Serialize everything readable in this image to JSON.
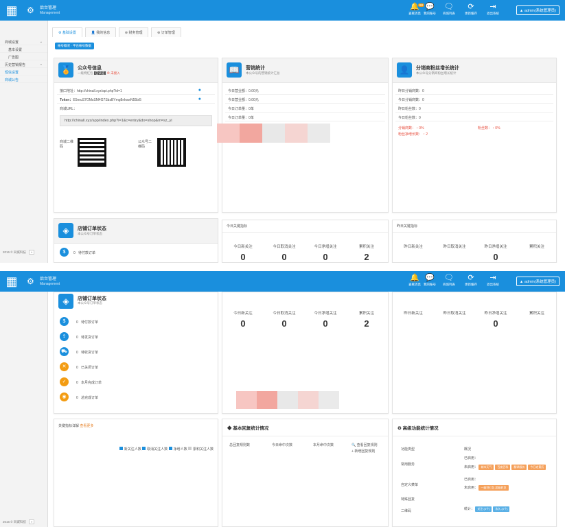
{
  "header": {
    "brand_cn": "后台管理",
    "brand_en": "Management",
    "icons": [
      {
        "name": "message-icon",
        "label": "查看消息",
        "badge": "88"
      },
      {
        "name": "account-icon",
        "label": "我的账号"
      },
      {
        "name": "list-icon",
        "label": "商城列表"
      },
      {
        "name": "refresh-icon",
        "label": "更新缓存"
      },
      {
        "name": "logout-icon",
        "label": "退出系统"
      }
    ],
    "admin": "admin(系统管理员)"
  },
  "sidebar": {
    "items": [
      {
        "label": "商城设置",
        "type": "grp"
      },
      {
        "label": "基本设置",
        "type": "sub"
      },
      {
        "label": "广告图",
        "type": "sub"
      },
      {
        "label": "历史营销报告",
        "type": "grp"
      },
      {
        "label": "短信设置",
        "type": "item"
      },
      {
        "label": "商城公告",
        "type": "item"
      }
    ],
    "footer": "2016 © 同城科技",
    "footer_btn": "»"
  },
  "tabs": [
    "基础设置",
    "我的信息",
    "财务管理",
    "订单管理"
  ],
  "breadcrumb": "帐号概况 · 平台帐号数据",
  "public_account": {
    "title": "公众号信息",
    "sub": "一级特红包",
    "sub_tag": "已认证",
    "sub_warn": "未接入",
    "api_label": "接口地址：",
    "api_value": "http://chinall.xyz/api.php?id=1",
    "token_label": "Token：",
    "token_value": "E5nruS7OMsSM4G7SbzBYmg8nkowN55bi5",
    "url_label": "商城URL：",
    "url_value": "http://chinall.xyz/app/index.php?i=1&c=entry&do=shop&m=sz_yi",
    "qr1_label": "商城二维码",
    "qr2_label": "公众号二维码"
  },
  "sales": {
    "title": "营销统计",
    "sub": "本公众号的营销统计汇总",
    "rows": [
      "今日营业额：0.00元",
      "今日营业额：0.00元",
      "今日订单量：0单",
      "今日订单量：0单"
    ]
  },
  "distribution": {
    "title": "分销商粉丝增长统计",
    "sub": "本公众号分销商粉丝增长统计",
    "rows": [
      "昨日分销商数：0",
      "今日分销商数：0",
      "昨日粉丝数：0",
      "今日粉丝数：0"
    ],
    "dist_rate_label": "分销商数：",
    "dist_rate_value": "0%",
    "fans_rate_label": "粉丝数：",
    "fans_rate_value": "0%",
    "net_growth_label": "粉丝净增长数：",
    "net_growth_value": "2"
  },
  "order_status": {
    "title": "店铺订单状态",
    "sub": "本公众号订单状态",
    "items": [
      {
        "count": "0",
        "label": "待付款订单",
        "color": "#1a8fdd"
      },
      {
        "count": "0",
        "label": "待发货订单",
        "color": "#1a8fdd"
      },
      {
        "count": "0",
        "label": "待收货订单",
        "color": "#1a8fdd"
      },
      {
        "count": "0",
        "label": "已关闭订单",
        "color": "#f39c12"
      },
      {
        "count": "0",
        "label": "本月完成订单",
        "color": "#f39c12"
      },
      {
        "count": "0",
        "label": "总完成订单",
        "color": "#f39c12"
      }
    ]
  },
  "today_keywords": {
    "title": "今日关键指标",
    "stats": [
      {
        "label": "今日新关注",
        "value": "0"
      },
      {
        "label": "今日取消关注",
        "value": "0"
      },
      {
        "label": "今日净增关注",
        "value": "0"
      },
      {
        "label": "累积关注",
        "value": "2"
      }
    ]
  },
  "yesterday_keywords": {
    "title": "昨日关键指标",
    "stats": [
      {
        "label": "昨日新关注",
        "value": ""
      },
      {
        "label": "昨日取消关注",
        "value": ""
      },
      {
        "label": "昨日净增关注",
        "value": "0"
      },
      {
        "label": "累积关注",
        "value": ""
      }
    ]
  },
  "keyword_detail": {
    "title": "关键指标详解",
    "more": "查看更多",
    "checks": [
      "新关注人数",
      "取消关注人数",
      "净增人数",
      "累积关注人数"
    ]
  },
  "reply_stats": {
    "title": "基本回复统计情况",
    "cols": [
      "总回复规则数",
      "今日命中次数",
      "本月命中次数"
    ],
    "link1": "查看回复规则",
    "link2": "新增回复规则"
  },
  "advanced": {
    "title": "高级功能统计情况",
    "col1": "功能类型",
    "col2": "概况",
    "rows": [
      {
        "type": "常用服务",
        "l1": "已启用：",
        "l2": "未启用：",
        "tags": [
          "城市天气",
          "百度百科",
          "翻译服务",
          "今日老黄历"
        ]
      },
      {
        "type": "自定义菜单",
        "l1": "已启用：",
        "l2": "未启用：",
        "tags": [
          "一级特红包 超级转发"
        ]
      },
      {
        "type": "特殊回复"
      },
      {
        "type": "二维码",
        "l1": "统计：",
        "tags": [
          "关注 (0个)",
          "永久 (0个)"
        ]
      }
    ]
  }
}
